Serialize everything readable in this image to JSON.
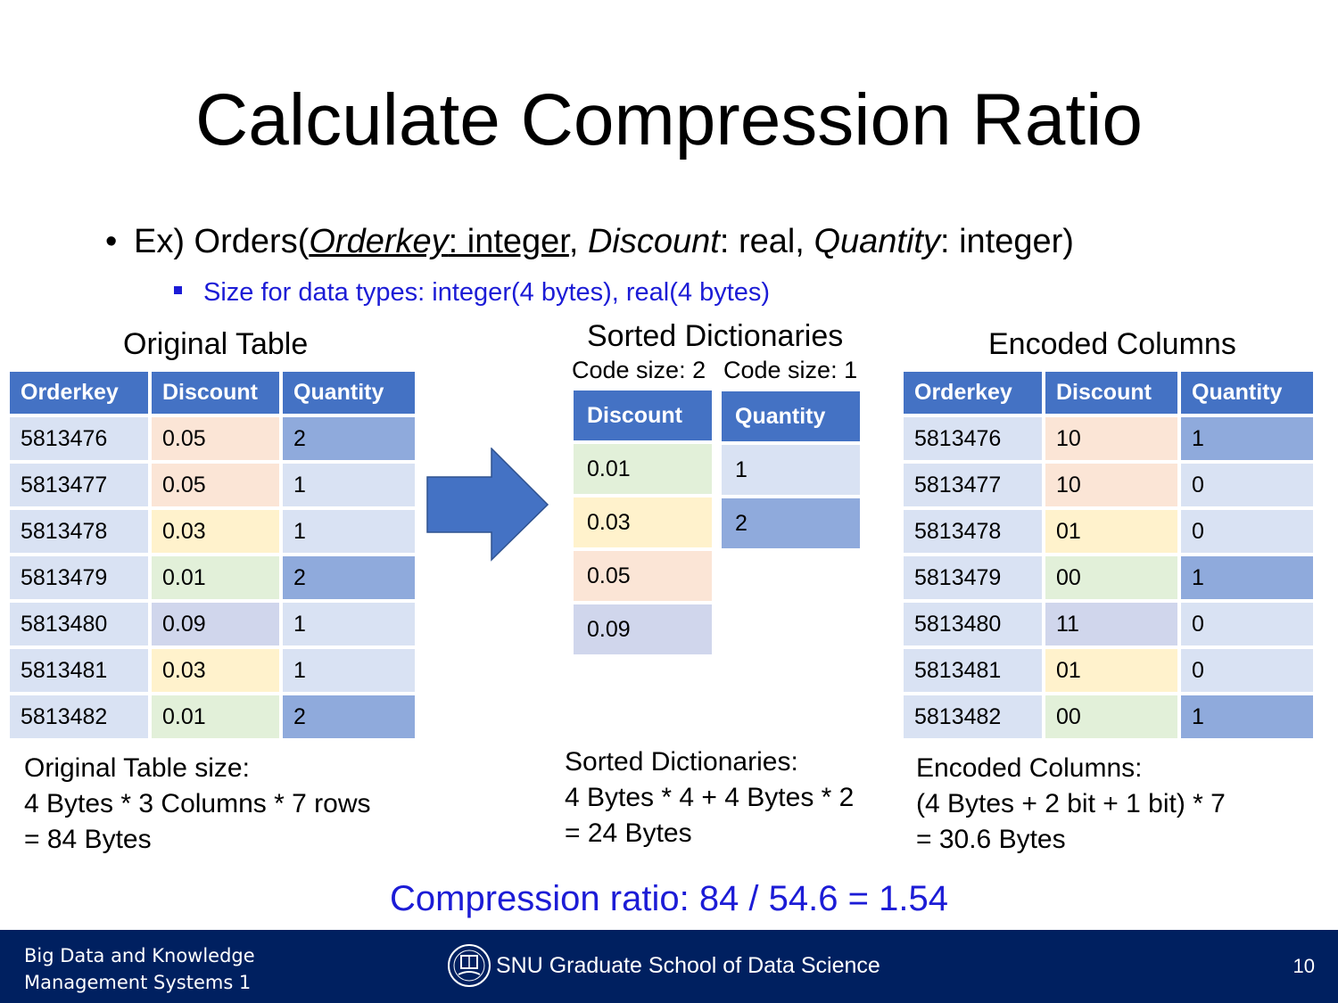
{
  "title": "Calculate Compression Ratio",
  "bullet1": {
    "prefix": "Ex) Orders(",
    "orderkey": "Orderkey",
    "orderkey_type": ": integer",
    "sep1": ", ",
    "discount": "Discount",
    "discount_type": ": real, ",
    "quantity": "Quantity",
    "quantity_type": ": integer)"
  },
  "bullet2": "Size for data types: integer(4 bytes), real(4 bytes)",
  "original": {
    "caption": "Original Table",
    "headers": [
      "Orderkey",
      "Discount",
      "Quantity"
    ],
    "rows": [
      [
        "5813476",
        "0.05",
        "2"
      ],
      [
        "5813477",
        "0.05",
        "1"
      ],
      [
        "5813478",
        "0.03",
        "1"
      ],
      [
        "5813479",
        "0.01",
        "2"
      ],
      [
        "5813480",
        "0.09",
        "1"
      ],
      [
        "5813481",
        "0.03",
        "1"
      ],
      [
        "5813482",
        "0.01",
        "2"
      ]
    ],
    "size_lines": [
      "Original Table size:",
      "4 Bytes * 3 Columns * 7 rows",
      "= 84 Bytes"
    ]
  },
  "dictionaries": {
    "caption": "Sorted Dictionaries",
    "code_size_discount": "Code size: 2",
    "code_size_quantity": "Code size: 1",
    "discount_header": "Discount",
    "discount_values": [
      "0.01",
      "0.03",
      "0.05",
      "0.09"
    ],
    "quantity_header": "Quantity",
    "quantity_values": [
      "1",
      "2"
    ],
    "size_lines": [
      "Sorted Dictionaries:",
      "4 Bytes * 4 + 4 Bytes * 2",
      "= 24 Bytes"
    ]
  },
  "encoded": {
    "caption": "Encoded Columns",
    "headers": [
      "Orderkey",
      "Discount",
      "Quantity"
    ],
    "rows": [
      [
        "5813476",
        "10",
        "1"
      ],
      [
        "5813477",
        "10",
        "0"
      ],
      [
        "5813478",
        "01",
        "0"
      ],
      [
        "5813479",
        "00",
        "1"
      ],
      [
        "5813480",
        "11",
        "0"
      ],
      [
        "5813481",
        "01",
        "0"
      ],
      [
        "5813482",
        "00",
        "1"
      ]
    ],
    "size_lines": [
      "Encoded Columns:",
      "(4 Bytes  + 2 bit + 1 bit) * 7",
      "= 30.6 Bytes"
    ]
  },
  "ratio": "Compression ratio: 84 / 54.6 = 1.54",
  "footer": {
    "course_line1": "Big Data and Knowledge",
    "course_line2": "Management Systems 1",
    "school": "SNU Graduate School of Data Science",
    "page": "10"
  },
  "colors": {
    "header_blue": "#4472c4",
    "accent_text": "#1c1cd6",
    "footer_bg": "#002060",
    "arrow": "#4472c4"
  }
}
